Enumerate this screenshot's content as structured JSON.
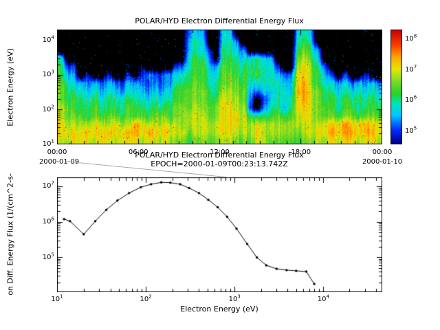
{
  "window": {
    "background": "#ffffff"
  },
  "top_chart": {
    "title": "POLAR/HYD  Electron Differential Energy Flux",
    "ylabel": "Electron Energy (eV)",
    "x_tick_labels": [
      "00:00",
      "06:00",
      "12:00",
      "18:00",
      "00:00"
    ],
    "x_date_left": "2000-01-09",
    "x_date_right": "2000-01-10",
    "y_tick_exponents": [
      1,
      2,
      3,
      4
    ],
    "colorbar_tick_exponents": [
      5,
      6,
      7,
      8
    ]
  },
  "bottom_chart": {
    "title": "POLAR/HYD  Electron Differential Energy Flux",
    "subtitle": "EPOCH=2000-01-09T00:23:13.742Z",
    "xlabel": "Electron Energy (eV)",
    "ylabel_truncated": "on Diff. Energy Flux (1/(cm^2-s-",
    "x_tick_exponents": [
      1,
      2,
      3,
      4
    ],
    "y_tick_exponents": [
      5,
      6,
      7
    ]
  },
  "chart_data": [
    {
      "type": "heatmap",
      "name": "electron-energy-time-spectrogram",
      "x_axis": "time 2000-01-09 00:00 to 2000-01-10 00:00",
      "x_range_hours": [
        0,
        24
      ],
      "y_range_ev": [
        10,
        21000
      ],
      "y_scale": "log",
      "z_units": "differential energy flux",
      "z_range_log10": [
        4.55,
        8.3
      ],
      "no_data_color": "#000000",
      "row_center_energies_ev": [
        13000,
        8000,
        5000,
        3000,
        1800,
        1100,
        650,
        390,
        235,
        140,
        85,
        50,
        28,
        15
      ],
      "column_width_minutes": 30,
      "char_values": {
        "0": 4.0,
        "1": 4.7,
        "2": 5.0,
        "3": 5.3,
        "4": 5.6,
        "5": 5.9,
        "6": 6.2,
        "7": 6.5,
        "8": 6.8,
        "9": 7.1,
        "A": 7.4,
        "B": 7.7,
        "C": 8.0
      },
      "grid": [
        [
          "00000000",
          "00000000",
          "00034300",
          "54000000",
          "00045300",
          "00000000"
        ],
        [
          "00000000",
          "00000000",
          "00045400",
          "55300000",
          "00056400",
          "00000000"
        ],
        [
          "00000000",
          "00000000",
          "00045420",
          "65430000",
          "00067530",
          "00000000"
        ],
        [
          "50000000",
          "00000000",
          "00056530",
          "66545544",
          "00078640",
          "00000000"
        ],
        [
          "62200000",
          "00001000",
          "02256643",
          "76656555",
          "20089753",
          "00000000"
        ],
        [
          "64302002",
          "00202322",
          "34466654",
          "77666655",
          "43399764",
          "20200200"
        ],
        [
          "75443424",
          "32433232",
          "35567655",
          "77765455",
          "5449A765",
          "43424343"
        ],
        [
          "76554535",
          "43544343",
          "46677765",
          "88774244",
          "554AA876",
          "54545454"
        ],
        [
          "76665646",
          "55655454",
          "56677766",
          "98873024",
          "5559A876",
          "65656565"
        ],
        [
          "87666756",
          "65766565",
          "67778777",
          "99882035",
          "64699877",
          "65665666"
        ],
        [
          "87776767",
          "76767677",
          "67788877",
          "99986566",
          "76789877",
          "76776777"
        ],
        [
          "98888988",
          "988A9888",
          "88788888",
          "99988888",
          "88888889",
          "99A99A99"
        ],
        [
          "9999A99A",
          "99AA9A99",
          "98878888",
          "99888988",
          "88878899",
          "A9AA9AA9"
        ],
        [
          "88999899",
          "89998988",
          "87767777",
          "88777887",
          "77767788",
          "98998998"
        ]
      ],
      "colormap_stops": [
        [
          4.55,
          "#000082"
        ],
        [
          5.0,
          "#0028ff"
        ],
        [
          5.5,
          "#00c8ff"
        ],
        [
          5.9,
          "#00e6b4"
        ],
        [
          6.2,
          "#28d228"
        ],
        [
          6.6,
          "#78dc28"
        ],
        [
          7.0,
          "#e6e600"
        ],
        [
          7.4,
          "#ffaa00"
        ],
        [
          7.8,
          "#ff3c00"
        ],
        [
          8.3,
          "#c80000"
        ]
      ]
    },
    {
      "type": "line",
      "name": "electron-spectrum-at-epoch",
      "x_ev": [
        12,
        14,
        20,
        27,
        36,
        48,
        65,
        88,
        115,
        150,
        190,
        245,
        310,
        400,
        510,
        650,
        830,
        1060,
        1400,
        1800,
        2300,
        3000,
        3900,
        5000,
        6500,
        8000
      ],
      "y_flux": [
        1200000,
        1050000,
        450000,
        1050000,
        2200000,
        4000000,
        6500000,
        9500000,
        11500000,
        13000000,
        12800000,
        11500000,
        9000000,
        6500000,
        4200000,
        2600000,
        1400000,
        650000,
        240000,
        100000,
        60000,
        48000,
        44000,
        42000,
        40000,
        18000
      ],
      "xlim": [
        10,
        46000
      ],
      "ylim": [
        11000,
        18000000
      ],
      "x_scale": "log",
      "y_scale": "log",
      "marker": "dot",
      "line_color": "#000000"
    }
  ],
  "connector": {
    "color": "#a8a8a8"
  }
}
